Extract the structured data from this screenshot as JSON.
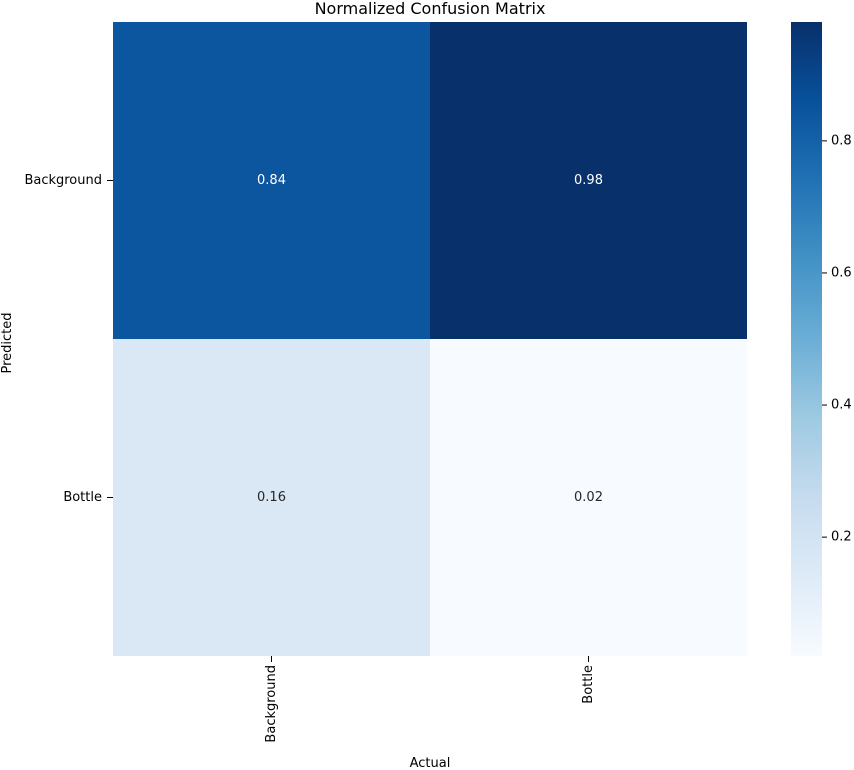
{
  "chart_data": {
    "type": "heatmap",
    "title": "Normalized Confusion Matrix",
    "xlabel": "Actual",
    "ylabel": "Predicted",
    "x_categories": [
      "Background",
      "Bottle"
    ],
    "y_categories": [
      "Background",
      "Bottle"
    ],
    "values": [
      [
        0.84,
        0.98
      ],
      [
        0.16,
        0.02
      ]
    ],
    "value_labels": [
      [
        "0.84",
        "0.98"
      ],
      [
        "0.16",
        "0.02"
      ]
    ],
    "colormap": "Blues",
    "color_range": [
      0.02,
      0.98
    ],
    "colorbar": {
      "ticks": [
        0.2,
        0.4,
        0.6,
        0.8
      ],
      "tick_labels": [
        "0.2",
        "0.4",
        "0.6",
        "0.8"
      ]
    },
    "grid": false,
    "legend": "colorbar-right"
  }
}
